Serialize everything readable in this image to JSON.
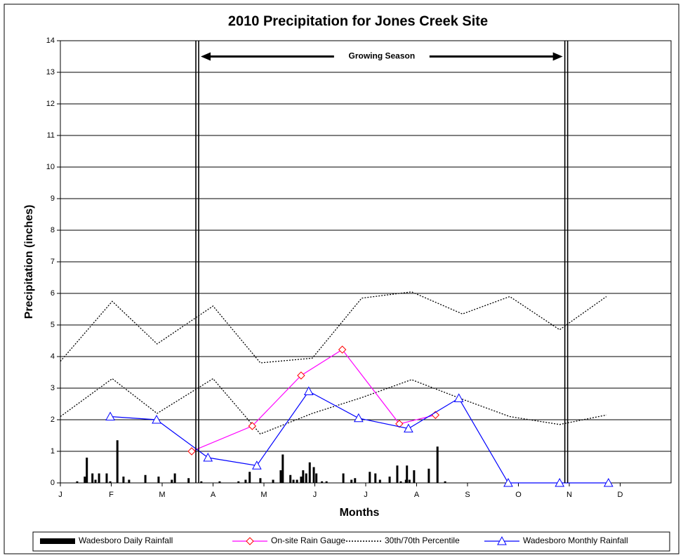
{
  "chart_data": {
    "type": "line",
    "title": "2010 Precipitation for Jones Creek Site",
    "x_label": "Months",
    "y_label": "Precipitation (inches)",
    "xlim": [
      0,
      12
    ],
    "xticks": [
      {
        "value": 0,
        "label": "J"
      },
      {
        "value": 1,
        "label": "F"
      },
      {
        "value": 2,
        "label": "M"
      },
      {
        "value": 3,
        "label": "A"
      },
      {
        "value": 4,
        "label": "M"
      },
      {
        "value": 5,
        "label": "J"
      },
      {
        "value": 6,
        "label": "J"
      },
      {
        "value": 7,
        "label": "A"
      },
      {
        "value": 8,
        "label": "S"
      },
      {
        "value": 9,
        "label": "O"
      },
      {
        "value": 10,
        "label": "N"
      },
      {
        "value": 11,
        "label": "D"
      }
    ],
    "ylim": [
      0,
      14
    ],
    "yticks": [
      0,
      1,
      2,
      3,
      4,
      5,
      6,
      7,
      8,
      9,
      10,
      11,
      12,
      13,
      14
    ],
    "grid": true,
    "annotation": {
      "label": "Growing Season",
      "start": 2.69,
      "end": 9.94,
      "y": 13.5
    },
    "series": [
      {
        "name": "Wadesboro Daily Rainfall",
        "type": "bar",
        "color": "#000000",
        "x": [
          0.33,
          0.48,
          0.52,
          0.63,
          0.69,
          0.76,
          0.91,
          0.98,
          1.12,
          1.24,
          1.35,
          1.67,
          1.93,
          2.19,
          2.25,
          2.52,
          2.77,
          3.13,
          3.5,
          3.64,
          3.72,
          3.93,
          4.18,
          4.33,
          4.37,
          4.52,
          4.58,
          4.65,
          4.73,
          4.77,
          4.83,
          4.9,
          4.98,
          5.03,
          5.14,
          5.23,
          5.56,
          5.72,
          5.79,
          6.08,
          6.19,
          6.28,
          6.47,
          6.62,
          6.69,
          6.79,
          6.81,
          6.86,
          6.95,
          7.24,
          7.41,
          7.56
        ],
        "values": [
          0.05,
          0.2,
          0.8,
          0.3,
          0.1,
          0.3,
          0.3,
          0.05,
          1.35,
          0.2,
          0.1,
          0.25,
          0.2,
          0.1,
          0.3,
          0.15,
          0.05,
          0.05,
          0.05,
          0.1,
          0.35,
          0.15,
          0.1,
          0.4,
          0.9,
          0.25,
          0.1,
          0.1,
          0.2,
          0.4,
          0.3,
          0.65,
          0.5,
          0.3,
          0.05,
          0.05,
          0.3,
          0.1,
          0.15,
          0.35,
          0.3,
          0.1,
          0.2,
          0.55,
          0.05,
          0.1,
          0.55,
          0.1,
          0.4,
          0.45,
          1.15,
          0.05
        ]
      },
      {
        "name": "On-site Rain Gauge",
        "type": "line",
        "color": "#ff00ff",
        "marker": "diamond",
        "marker_color": "#ff0000",
        "x": [
          2.58,
          3.77,
          4.73,
          5.54,
          6.66,
          7.37
        ],
        "values": [
          1.0,
          1.8,
          3.4,
          4.22,
          1.87,
          2.15
        ]
      },
      {
        "name": "30th/70th Percentile",
        "type": "dotted",
        "color": "#000000",
        "x": [
          0,
          1.02,
          1.9,
          3.0,
          3.93,
          4.95,
          5.92,
          6.9,
          7.9,
          8.83,
          9.81,
          10.73
        ],
        "values": [
          3.85,
          5.75,
          4.4,
          5.6,
          3.8,
          3.95,
          5.85,
          6.05,
          5.35,
          5.9,
          4.85,
          5.9
        ],
        "lower_values": [
          2.1,
          3.3,
          2.2,
          3.3,
          1.55,
          2.2,
          2.7,
          3.27,
          2.65,
          2.1,
          1.85,
          2.15
        ]
      },
      {
        "name": "Wadesboro Monthly Rainfall",
        "type": "line",
        "color": "#0000ff",
        "marker": "triangle",
        "marker_color": "#0000ff",
        "x": [
          0.98,
          1.89,
          2.9,
          3.86,
          4.88,
          5.86,
          6.84,
          7.83,
          8.8,
          9.81,
          10.77
        ],
        "values": [
          2.1,
          2.0,
          0.8,
          0.55,
          2.9,
          2.05,
          1.72,
          2.68,
          0,
          0,
          0
        ]
      }
    ]
  }
}
